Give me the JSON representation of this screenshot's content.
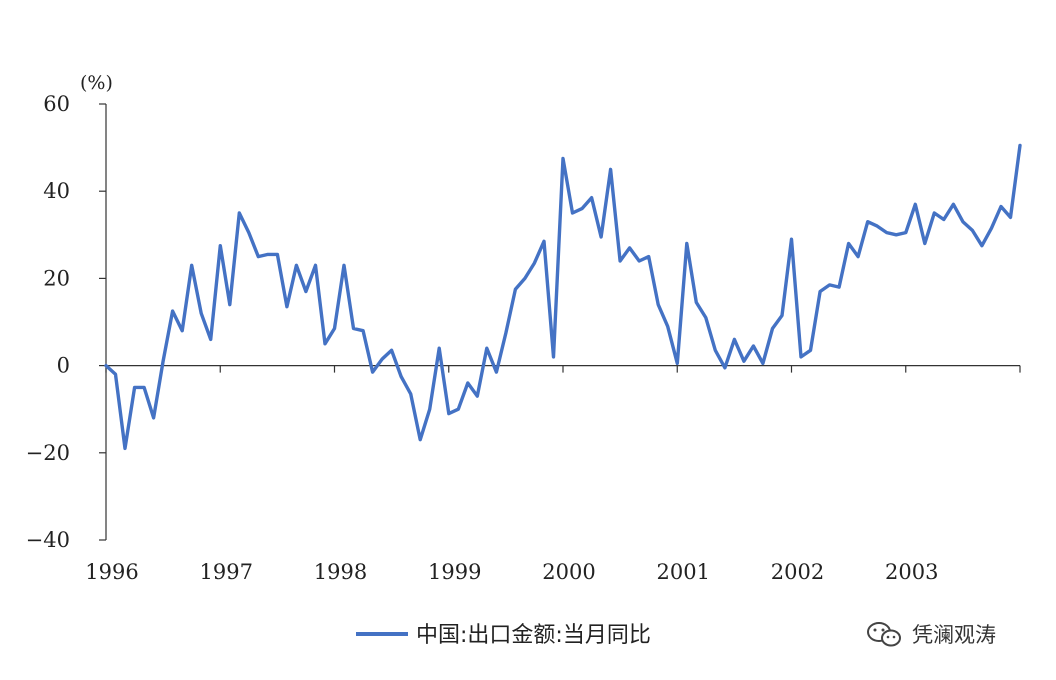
{
  "chart_data": {
    "type": "line",
    "unit_label": "(%)",
    "x_ticks": [
      "1996",
      "1997",
      "1998",
      "1999",
      "2000",
      "2001",
      "2002",
      "2003"
    ],
    "y_ticks": [
      "60",
      "40",
      "20",
      "0",
      "−20",
      "−40"
    ],
    "ylim": [
      -40,
      60
    ],
    "grid": false,
    "legend_position": "bottom-center",
    "series": [
      {
        "name": "中国:出口金额:当月同比",
        "color": "#4472C4",
        "start": "1996-01",
        "frequency": "monthly",
        "values": [
          0,
          -2,
          -19,
          -5,
          -5,
          -12,
          1,
          12.5,
          8,
          23,
          12,
          6,
          27.5,
          14,
          35,
          30.5,
          25,
          25.5,
          25.5,
          13.5,
          23,
          17,
          23,
          5,
          8.5,
          23,
          8.5,
          8,
          -1.5,
          1.5,
          3.5,
          -2.5,
          -6.5,
          -17,
          -10,
          4,
          -11,
          -10,
          -4,
          -7,
          4,
          -1.5,
          7.5,
          17.5,
          20,
          23.5,
          28.5,
          2,
          47.5,
          35,
          36,
          38.5,
          29.5,
          45,
          24,
          27,
          24,
          25,
          14,
          9,
          0.5,
          28,
          14.5,
          11,
          3.5,
          -0.5,
          6,
          1,
          4.5,
          0.5,
          8.5,
          11.5,
          29,
          2,
          3.5,
          17,
          18.5,
          18,
          28,
          25,
          33,
          32,
          30.5,
          30,
          30.5,
          37,
          28,
          35,
          33.5,
          37,
          33,
          31,
          27.5,
          31.5,
          36.5,
          34,
          50.5
        ]
      }
    ]
  },
  "watermark": {
    "text": "凭澜观涛",
    "icon": "wechat-icon"
  }
}
